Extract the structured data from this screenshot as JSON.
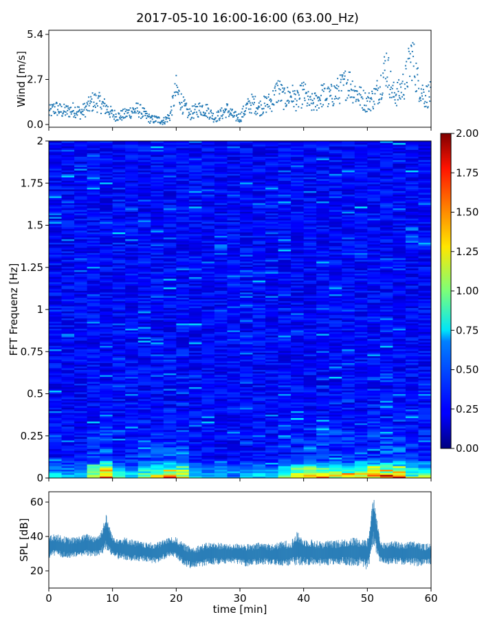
{
  "title": "2017-05-10 16:00-16:00 (63.00_Hz)",
  "chart_data": [
    {
      "type": "scatter",
      "ylabel": "Wind [m/s]",
      "xlim": [
        0,
        60
      ],
      "ylim": [
        0,
        5.4
      ],
      "yticks": [
        "0.0",
        "2.7",
        "5.4"
      ],
      "color": "#1f77b4",
      "series": [
        {
          "x": [
            0,
            1,
            2,
            3,
            4,
            5,
            6,
            7,
            8,
            9,
            10,
            11,
            12,
            13,
            14,
            15,
            16,
            17,
            18,
            19,
            20,
            21,
            22,
            23,
            24,
            25,
            26,
            27,
            28,
            29,
            30,
            31,
            32,
            33,
            34,
            35,
            36,
            37,
            38,
            39,
            40,
            41,
            42,
            43,
            44,
            45,
            46,
            47,
            48,
            49,
            50,
            51,
            52,
            53,
            54,
            55,
            56,
            57,
            58,
            59,
            60
          ],
          "y": [
            0.7,
            1.0,
            0.8,
            0.8,
            0.9,
            0.7,
            1.0,
            1.4,
            1.3,
            1.0,
            0.6,
            0.5,
            0.6,
            0.8,
            0.9,
            0.6,
            0.3,
            0.3,
            0.2,
            0.5,
            2.1,
            1.2,
            0.6,
            0.8,
            1.0,
            0.8,
            0.4,
            0.6,
            0.9,
            0.5,
            0.4,
            1.0,
            1.3,
            1.0,
            1.2,
            1.4,
            2.1,
            1.5,
            1.8,
            1.4,
            1.9,
            1.2,
            1.4,
            1.8,
            1.6,
            1.9,
            2.2,
            2.6,
            2.0,
            1.6,
            1.3,
            1.6,
            2.3,
            3.6,
            1.8,
            1.9,
            2.6,
            4.2,
            2.4,
            1.7,
            1.8
          ]
        }
      ]
    },
    {
      "type": "heatmap",
      "ylabel": "FFT Frequenz [Hz]",
      "xlim": [
        0,
        60
      ],
      "ylim": [
        0,
        2
      ],
      "yticks": [
        "0",
        "0.25",
        "0.5",
        "0.75",
        "1",
        "1.25",
        "1.5",
        "1.75",
        "2"
      ],
      "colormap": "jet",
      "colorbar": {
        "range": [
          0,
          2
        ],
        "ticks": [
          "0.00",
          "0.25",
          "0.50",
          "0.75",
          "1.00",
          "1.25",
          "1.50",
          "1.75",
          "2.00"
        ]
      },
      "time_blocks": [
        0,
        2,
        4,
        6,
        8,
        10,
        12,
        14,
        16,
        18,
        20,
        22,
        24,
        26,
        28,
        30,
        32,
        34,
        36,
        38,
        40,
        42,
        44,
        46,
        48,
        50,
        52,
        54,
        56,
        58
      ],
      "low_freq_amplitude": [
        0.55,
        0.5,
        0.5,
        1.3,
        1.8,
        0.7,
        0.6,
        1.3,
        1.4,
        1.7,
        1.5,
        0.6,
        0.5,
        0.5,
        0.5,
        0.5,
        0.6,
        0.6,
        0.9,
        1.4,
        1.6,
        1.4,
        1.3,
        1.3,
        1.5,
        1.7,
        1.8,
        1.7,
        1.1,
        1.0
      ],
      "background_amplitude": 0.25
    },
    {
      "type": "area",
      "ylabel": "SPL [dB]",
      "xlabel": "time [min]",
      "xlim": [
        0,
        60
      ],
      "ylim": [
        10,
        66
      ],
      "yticks": [
        "20",
        "40",
        "60"
      ],
      "xticks": [
        "0",
        "10",
        "20",
        "30",
        "40",
        "50",
        "60"
      ],
      "color": "#1f77b4",
      "series": [
        {
          "x": [
            0,
            1,
            2,
            3,
            4,
            5,
            6,
            7,
            8,
            9,
            10,
            11,
            12,
            13,
            14,
            15,
            16,
            17,
            18,
            19,
            20,
            21,
            22,
            23,
            24,
            25,
            26,
            27,
            28,
            29,
            30,
            31,
            32,
            33,
            34,
            35,
            36,
            37,
            38,
            39,
            40,
            41,
            42,
            43,
            44,
            45,
            46,
            47,
            48,
            49,
            50,
            51,
            52,
            53,
            54,
            55,
            56,
            57,
            58,
            59,
            60
          ],
          "y_low": [
            28,
            29,
            28,
            28,
            28,
            29,
            29,
            29,
            29,
            33,
            29,
            27,
            27,
            26,
            26,
            26,
            25,
            25,
            27,
            29,
            28,
            24,
            22,
            22,
            23,
            24,
            24,
            24,
            25,
            25,
            24,
            23,
            24,
            24,
            24,
            24,
            24,
            23,
            24,
            24,
            24,
            24,
            24,
            23,
            24,
            24,
            24,
            24,
            23,
            24,
            21,
            35,
            25,
            24,
            25,
            24,
            24,
            24,
            23,
            24,
            24
          ],
          "y_high": [
            40,
            41,
            40,
            39,
            39,
            40,
            41,
            40,
            41,
            52,
            40,
            39,
            39,
            38,
            37,
            36,
            36,
            36,
            38,
            39,
            39,
            36,
            34,
            34,
            35,
            36,
            36,
            36,
            35,
            35,
            36,
            35,
            35,
            36,
            36,
            35,
            36,
            37,
            37,
            42,
            38,
            38,
            37,
            37,
            37,
            37,
            38,
            38,
            39,
            38,
            38,
            62,
            37,
            36,
            38,
            36,
            36,
            37,
            36,
            35,
            36
          ],
          "y_mid": [
            34,
            35,
            34,
            33,
            33,
            34,
            35,
            34,
            35,
            42,
            34,
            33,
            33,
            32,
            31,
            31,
            30,
            30,
            32,
            34,
            33,
            30,
            28,
            28,
            29,
            30,
            30,
            30,
            30,
            30,
            30,
            29,
            29,
            30,
            30,
            29,
            30,
            30,
            30,
            33,
            31,
            31,
            30,
            30,
            30,
            30,
            31,
            31,
            31,
            31,
            30,
            50,
            31,
            30,
            31,
            30,
            30,
            31,
            30,
            29,
            30
          ]
        }
      ]
    }
  ]
}
